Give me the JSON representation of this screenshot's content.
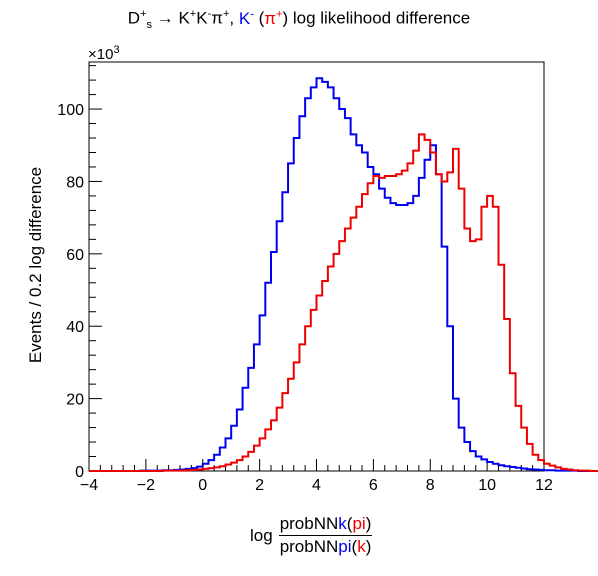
{
  "title": {
    "decay_d": "D",
    "decay_d_sup": "+",
    "decay_d_sub": "s",
    "arrow": " → ",
    "k1": "K",
    "k1_sup": "+",
    "k2": "K",
    "k2_sup": "-",
    "pi": "π",
    "pi_sup": "+",
    "comma": ", ",
    "kminus": "K",
    "kminus_sup": "-",
    "paren_open": " (",
    "piplus": "π",
    "piplus_sup": "+",
    "paren_close": ")",
    "rest": " log likelihood difference"
  },
  "y_multiplier": {
    "base": "×10",
    "exp": "3"
  },
  "ylabel": "Events / 0.2 log difference",
  "xlabel": {
    "prefix": "log",
    "num_a": "probNN",
    "num_b": "k",
    "num_c": "(",
    "num_d": "pi",
    "num_e": ")",
    "den_a": "probNN",
    "den_b": "pi",
    "den_c": "(",
    "den_d": "k",
    "den_e": ")"
  },
  "colors": {
    "blue": "#0000ee",
    "red": "#ee0000"
  },
  "chart_data": {
    "type": "histogram",
    "title": "D_s^+ → K^+K^-π^+, K^- (π^+) log likelihood difference",
    "xlabel": "log probNNk(pi)/probNNpi(k)",
    "ylabel": "Events / 0.2 log difference",
    "xlim": [
      -4,
      12
    ],
    "ylim": [
      0,
      113
    ],
    "y_scale_note": "×10^3",
    "x_ticks": [
      "−4",
      "−2",
      "0",
      "2",
      "4",
      "6",
      "8",
      "10",
      "12"
    ],
    "y_ticks": [
      "0",
      "20",
      "40",
      "60",
      "80",
      "100"
    ],
    "bin_width": 0.2,
    "x_start": -4,
    "series": [
      {
        "name": "K-",
        "color": "#0000ee",
        "values": [
          0,
          0,
          0,
          0,
          0,
          0,
          0,
          0,
          0,
          0.1,
          0.1,
          0.1,
          0.1,
          0.2,
          0.2,
          0.3,
          0.4,
          0.6,
          0.8,
          1.2,
          2,
          3,
          4.5,
          6.5,
          9,
          12.5,
          17,
          23,
          28.5,
          35,
          43,
          52,
          60.5,
          69,
          77,
          85,
          92,
          98,
          103,
          106,
          108.5,
          107.5,
          106,
          103,
          100,
          97.5,
          93,
          90,
          88,
          84,
          82,
          78,
          75.5,
          74,
          73.5,
          73.5,
          74,
          76,
          81,
          86,
          90,
          82,
          62,
          40,
          20,
          12,
          8,
          5.5,
          4,
          3.2,
          2.5,
          2,
          1.6,
          1.3,
          1.1,
          0.9,
          0.7,
          0.5,
          0.4,
          0.3,
          0.2,
          0.2,
          0.1,
          0.1,
          0.1,
          0.1,
          0,
          0,
          0,
          0
        ]
      },
      {
        "name": "π+",
        "color": "#ee0000",
        "values": [
          0,
          0,
          0,
          0,
          0,
          0,
          0,
          0,
          0,
          0,
          0,
          0,
          0,
          0.1,
          0.1,
          0.1,
          0.1,
          0.2,
          0.3,
          0.4,
          0.6,
          0.8,
          1,
          1.3,
          1.8,
          2.3,
          3,
          4,
          5.3,
          7,
          9,
          11.5,
          14,
          17.5,
          21.5,
          25.5,
          30,
          35,
          40,
          44.5,
          48.5,
          52.5,
          56.5,
          60,
          63.5,
          67,
          70,
          73,
          76.5,
          79.5,
          81.5,
          81,
          81.5,
          81.5,
          82,
          83,
          85,
          88.5,
          93,
          91.5,
          88,
          82,
          80,
          82.5,
          89,
          78,
          67,
          63.5,
          64,
          73,
          76,
          73,
          57,
          42,
          27,
          18,
          12,
          7.5,
          4.5,
          3,
          2,
          1.5,
          1,
          0.6,
          0.4,
          0.2,
          0.1,
          0.1,
          0,
          0
        ]
      }
    ]
  }
}
